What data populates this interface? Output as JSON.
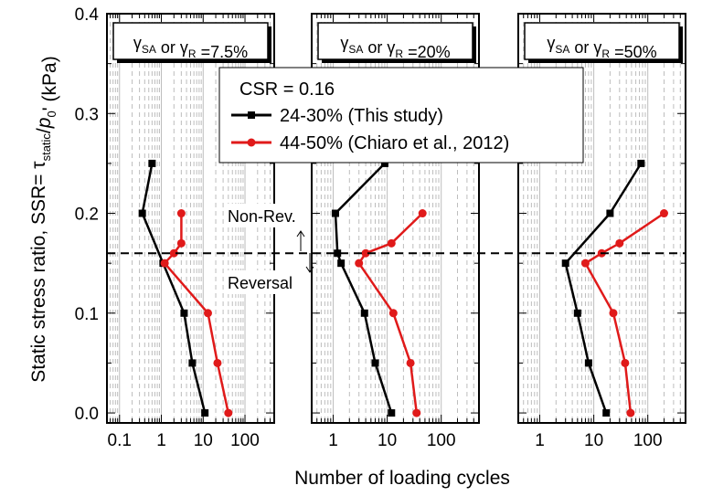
{
  "chart_data": [
    {
      "type": "line",
      "panel_title": {
        "g1": "γ",
        "s1": "SA",
        "or": " or ",
        "g2": "γ",
        "s2": "R",
        "val": " =7.5%"
      },
      "xscale": "log",
      "xlim": [
        0.05,
        500
      ],
      "xticks": [
        "0.1",
        "1",
        "10",
        "100"
      ],
      "series": [
        {
          "name": "24-30% (This study)",
          "color": "#000000",
          "marker": "square",
          "x": [
            11,
            5.5,
            3.5,
            1.1,
            0.35,
            0.6
          ],
          "y": [
            0.0,
            0.05,
            0.1,
            0.15,
            0.2,
            0.25
          ]
        },
        {
          "name": "44-50% (Chiaro et al., 2012)",
          "color": "#e01a1a",
          "marker": "circle",
          "x": [
            40,
            22,
            13,
            1.2,
            2.0,
            3.0,
            3.0
          ],
          "y": [
            0.0,
            0.05,
            0.1,
            0.15,
            0.16,
            0.17,
            0.2
          ]
        }
      ]
    },
    {
      "type": "line",
      "panel_title": {
        "g1": "γ",
        "s1": "SA",
        "or": " or ",
        "g2": "γ",
        "s2": "R",
        "val": " =20%"
      },
      "xscale": "log",
      "xlim": [
        0.4,
        500
      ],
      "xticks": [
        "1",
        "10",
        "100"
      ],
      "series": [
        {
          "name": "24-30% (This study)",
          "color": "#000000",
          "marker": "square",
          "x": [
            12,
            6,
            3.8,
            1.4,
            1.2,
            1.1,
            9
          ],
          "y": [
            0.0,
            0.05,
            0.1,
            0.15,
            0.16,
            0.2,
            0.25
          ]
        },
        {
          "name": "44-50% (Chiaro et al., 2012)",
          "color": "#e01a1a",
          "marker": "circle",
          "x": [
            35,
            27,
            13,
            3.0,
            4.0,
            12,
            45
          ],
          "y": [
            0.0,
            0.05,
            0.1,
            0.15,
            0.16,
            0.17,
            0.2
          ]
        }
      ]
    },
    {
      "type": "line",
      "panel_title": {
        "g1": "γ",
        "s1": "SA",
        "or": " or ",
        "g2": "γ",
        "s2": "R",
        "val": " =50%"
      },
      "xscale": "log",
      "xlim": [
        0.4,
        500
      ],
      "xticks": [
        "1",
        "10",
        "100"
      ],
      "series": [
        {
          "name": "24-30% (This study)",
          "color": "#000000",
          "marker": "square",
          "x": [
            17,
            8,
            5,
            3,
            20,
            75
          ],
          "y": [
            0.0,
            0.05,
            0.1,
            0.15,
            0.2,
            0.25
          ]
        },
        {
          "name": "44-50% (Chiaro et al., 2012)",
          "color": "#e01a1a",
          "marker": "circle",
          "x": [
            48,
            38,
            23,
            7,
            14,
            30,
            200
          ],
          "y": [
            0.0,
            0.05,
            0.1,
            0.15,
            0.16,
            0.17,
            0.2
          ]
        }
      ]
    }
  ],
  "yaxis": {
    "ylim": [
      -0.01,
      0.4
    ],
    "yticks": [
      "0.0",
      "0.1",
      "0.2",
      "0.3",
      "0.4"
    ],
    "label_parts": {
      "a": "Static stress ratio, SSR= ",
      "tau": "τ",
      "tau_sub": "static",
      "slash": "/",
      "p": "p",
      "p_sub": "0",
      "b": "' (kPa)"
    }
  },
  "xaxis_label": "Number of loading cycles",
  "threshold": {
    "y": 0.16,
    "style": "dashed",
    "above_label": "Non-Rev.",
    "below_label": "Reversal"
  },
  "legend": {
    "title": "CSR = 0.16",
    "entries": [
      "24-30% (This study)",
      "44-50% (Chiaro et al., 2012)"
    ],
    "colors": [
      "#000000",
      "#e01a1a"
    ]
  }
}
